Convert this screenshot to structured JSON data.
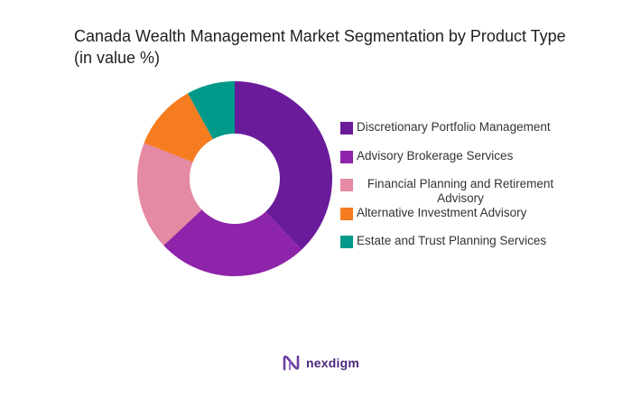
{
  "chart_data": {
    "type": "pie",
    "title": "Canada Wealth Management Market Segmentation by Product Type (in value %)",
    "categories": [
      "Discretionary Portfolio Management",
      "Advisory Brokerage Services",
      "Financial Planning and Retirement Advisory",
      "Alternative Investment Advisory",
      "Estate and Trust Planning Services"
    ],
    "values": [
      38,
      25,
      18,
      11,
      8
    ],
    "colors": [
      "#6a1b9a",
      "#8e24aa",
      "#e48aa3",
      "#f57c1f",
      "#00998a"
    ],
    "donut": true,
    "legend_position": "right"
  },
  "brand": {
    "name": "nexdigm",
    "color": "#4a2a7a"
  }
}
